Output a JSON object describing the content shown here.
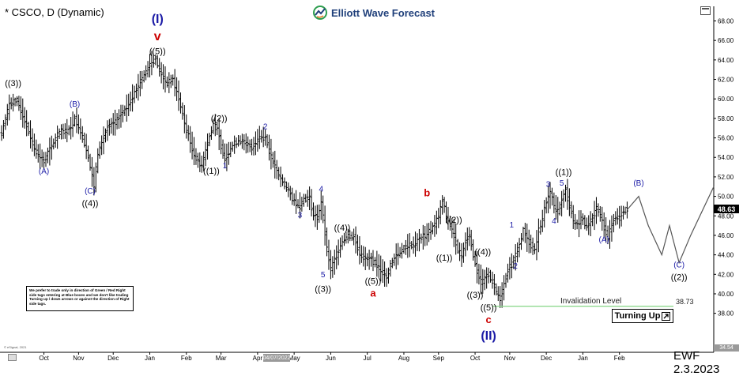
{
  "header": {
    "title": "* CSCO, D (Dynamic)",
    "logo_text": "Elliott Wave Forecast"
  },
  "footer": {
    "signature": "EWF 2.3.2023",
    "copyright": "© eSignal, 2021",
    "cursor_date": "04/07/2022"
  },
  "note_text": "We prefer to trade only in direction of Green / Red Right side tags entering at Blue boxes and we don't like trading Turning up / down arrows or against the direction of Right side tags.",
  "turning_button": {
    "label": "Turning Up",
    "icon": "arrow-up-right-icon"
  },
  "invalidation": {
    "label": "Invalidation Level",
    "value": "38.73",
    "price": 38.73,
    "color": "#8fd98f"
  },
  "last_price": {
    "label": "48.63",
    "value": 48.63
  },
  "bottom_price_tag": "34.54",
  "colors": {
    "bars": "#000000",
    "blue_label": "#1a1aa6",
    "red_label": "#cc0000",
    "projection": "#555555",
    "brand_green": "#2e9e4f",
    "brand_blue": "#1f3f7a"
  },
  "chart_data": {
    "type": "ohlc",
    "title": "* CSCO, D (Dynamic)",
    "ylim": [
      34,
      69.5
    ],
    "yticks": [
      38,
      40,
      42,
      44,
      46,
      48,
      50,
      52,
      54,
      56,
      58,
      60,
      62,
      64,
      66,
      68
    ],
    "ytick_labels": [
      "38.00",
      "40.00",
      "42.00",
      "44.00",
      "46.00",
      "48.00",
      "50.00",
      "52.00",
      "54.00",
      "56.00",
      "58.00",
      "60.00",
      "62.00",
      "64.00",
      "66.00",
      "68.00"
    ],
    "xticks": [
      "Oct",
      "Nov",
      "Dec",
      "Jan",
      "Feb",
      "Mar",
      "Apr",
      "May",
      "Jun",
      "Jul",
      "Aug",
      "Sep",
      "Oct",
      "Nov",
      "Dec",
      "Jan",
      "Feb"
    ],
    "xtick_pos": [
      22,
      40,
      58,
      77,
      96,
      114,
      133,
      152,
      171,
      190,
      209,
      227,
      246,
      264,
      283,
      302,
      321
    ],
    "x_range": [
      0,
      370
    ],
    "grid": false,
    "price_path": [
      [
        0,
        56.5
      ],
      [
        4,
        59.5
      ],
      [
        8,
        59.8
      ],
      [
        12,
        57.8
      ],
      [
        16,
        55.5
      ],
      [
        19,
        54.2
      ],
      [
        22,
        53.6
      ],
      [
        26,
        55.2
      ],
      [
        30,
        56.6
      ],
      [
        35,
        56.8
      ],
      [
        38,
        58.0
      ],
      [
        40,
        57.2
      ],
      [
        43,
        55.5
      ],
      [
        45,
        54.0
      ],
      [
        47,
        52.0
      ],
      [
        48,
        51.1
      ],
      [
        50,
        54.5
      ],
      [
        55,
        57.0
      ],
      [
        60,
        57.8
      ],
      [
        65,
        59.2
      ],
      [
        70,
        61.0
      ],
      [
        74,
        62.5
      ],
      [
        77,
        63.6
      ],
      [
        80,
        64.1
      ],
      [
        83,
        62.4
      ],
      [
        86,
        61.6
      ],
      [
        89,
        62.0
      ],
      [
        92,
        60.0
      ],
      [
        95,
        57.5
      ],
      [
        98,
        55.5
      ],
      [
        101,
        53.8
      ],
      [
        104,
        53.2
      ],
      [
        107,
        55.5
      ],
      [
        110,
        57.5
      ],
      [
        112,
        56.8
      ],
      [
        114,
        55.2
      ],
      [
        116,
        53.8
      ],
      [
        119,
        55.0
      ],
      [
        123,
        55.8
      ],
      [
        126,
        55.5
      ],
      [
        130,
        55.0
      ],
      [
        134,
        56.2
      ],
      [
        137,
        56.0
      ],
      [
        140,
        54.0
      ],
      [
        143,
        52.5
      ],
      [
        146,
        51.5
      ],
      [
        149,
        50.5
      ],
      [
        152,
        49.5
      ],
      [
        155,
        49.0
      ],
      [
        157,
        49.8
      ],
      [
        160,
        49.8
      ],
      [
        162,
        48.0
      ],
      [
        164,
        47.8
      ],
      [
        166,
        49.5
      ],
      [
        169,
        44.5
      ],
      [
        171,
        42.5
      ],
      [
        174,
        44.0
      ],
      [
        177,
        45.5
      ],
      [
        180,
        46.0
      ],
      [
        183,
        45.8
      ],
      [
        186,
        44.2
      ],
      [
        189,
        43.5
      ],
      [
        192,
        43.5
      ],
      [
        195,
        43.0
      ],
      [
        198,
        42.2
      ],
      [
        200,
        41.5
      ],
      [
        202,
        43.0
      ],
      [
        205,
        44.0
      ],
      [
        208,
        44.5
      ],
      [
        211,
        45.0
      ],
      [
        214,
        45.0
      ],
      [
        217,
        45.6
      ],
      [
        220,
        46.0
      ],
      [
        223,
        46.6
      ],
      [
        225,
        47.1
      ],
      [
        227,
        48.0
      ],
      [
        229,
        49.5
      ],
      [
        231,
        48.0
      ],
      [
        233,
        47.0
      ],
      [
        235,
        46.0
      ],
      [
        237,
        44.5
      ],
      [
        239,
        43.8
      ],
      [
        241,
        45.5
      ],
      [
        243,
        46.0
      ],
      [
        245,
        44.0
      ],
      [
        247,
        42.3
      ],
      [
        249,
        41.2
      ],
      [
        251,
        41.5
      ],
      [
        253,
        42.0
      ],
      [
        255,
        41.2
      ],
      [
        257,
        40.2
      ],
      [
        259,
        39.5
      ],
      [
        261,
        41.0
      ],
      [
        263,
        42.5
      ],
      [
        265,
        43.0
      ],
      [
        267,
        44.0
      ],
      [
        269,
        45.0
      ],
      [
        271,
        46.5
      ],
      [
        273,
        45.5
      ],
      [
        275,
        45.0
      ],
      [
        277,
        44.5
      ],
      [
        279,
        46.5
      ],
      [
        281,
        47.8
      ],
      [
        283,
        49.5
      ],
      [
        285,
        50.3
      ],
      [
        287,
        49.0
      ],
      [
        289,
        48.5
      ],
      [
        291,
        49.5
      ],
      [
        293,
        50.6
      ],
      [
        295,
        49.0
      ],
      [
        297,
        47.5
      ],
      [
        299,
        47.0
      ],
      [
        301,
        47.8
      ],
      [
        303,
        47.2
      ],
      [
        305,
        47.0
      ],
      [
        307,
        47.8
      ],
      [
        309,
        48.8
      ],
      [
        311,
        48.0
      ],
      [
        313,
        46.8
      ],
      [
        315,
        45.8
      ],
      [
        317,
        47.0
      ],
      [
        319,
        48.0
      ],
      [
        321,
        47.8
      ],
      [
        323,
        48.5
      ],
      [
        325,
        48.63
      ]
    ],
    "projection": [
      [
        325,
        48.63
      ],
      [
        331,
        50.0
      ],
      [
        336,
        47.0
      ],
      [
        343,
        44.0
      ],
      [
        347,
        47.0
      ],
      [
        352,
        43.2
      ],
      [
        358,
        46.0
      ],
      [
        370,
        51.0
      ]
    ],
    "wave_labels": [
      {
        "text": "((3))",
        "x": 6,
        "y": 61.3,
        "color": "black",
        "size": 11
      },
      {
        "text": "(A)",
        "x": 22,
        "y": 52.3,
        "color": "blue",
        "size": 10
      },
      {
        "text": "(B)",
        "x": 38,
        "y": 59.2,
        "color": "blue",
        "size": 10
      },
      {
        "text": "(C)",
        "x": 46,
        "y": 50.3,
        "color": "blue",
        "size": 10
      },
      {
        "text": "((4))",
        "x": 46,
        "y": 49.0,
        "color": "black",
        "size": 11
      },
      {
        "text": "(I)",
        "x": 81,
        "y": 67.8,
        "color": "blue",
        "size": 16
      },
      {
        "text": "v",
        "x": 81,
        "y": 66.0,
        "color": "red",
        "size": 16
      },
      {
        "text": "((5))",
        "x": 81,
        "y": 64.6,
        "color": "black",
        "size": 11
      },
      {
        "text": "((2))",
        "x": 113,
        "y": 57.7,
        "color": "black",
        "size": 11
      },
      {
        "text": "((1))",
        "x": 109,
        "y": 52.3,
        "color": "black",
        "size": 11
      },
      {
        "text": "1",
        "x": 116,
        "y": 52.9,
        "color": "blue",
        "size": 10
      },
      {
        "text": "2",
        "x": 137,
        "y": 56.9,
        "color": "blue",
        "size": 10
      },
      {
        "text": "3",
        "x": 155,
        "y": 47.8,
        "color": "blue",
        "size": 10
      },
      {
        "text": "4",
        "x": 166,
        "y": 50.5,
        "color": "blue",
        "size": 10
      },
      {
        "text": "((4))",
        "x": 177,
        "y": 46.5,
        "color": "black",
        "size": 11
      },
      {
        "text": "5",
        "x": 167,
        "y": 41.7,
        "color": "blue",
        "size": 10
      },
      {
        "text": "((3))",
        "x": 167,
        "y": 40.2,
        "color": "black",
        "size": 11
      },
      {
        "text": "((5))",
        "x": 193,
        "y": 41.0,
        "color": "black",
        "size": 11
      },
      {
        "text": "a",
        "x": 193,
        "y": 39.7,
        "color": "red",
        "size": 13
      },
      {
        "text": "b",
        "x": 221,
        "y": 50.0,
        "color": "red",
        "size": 13
      },
      {
        "text": "((2))",
        "x": 235,
        "y": 47.3,
        "color": "black",
        "size": 11
      },
      {
        "text": "((1))",
        "x": 230,
        "y": 43.4,
        "color": "black",
        "size": 11
      },
      {
        "text": "((4))",
        "x": 250,
        "y": 44.0,
        "color": "black",
        "size": 11
      },
      {
        "text": "((3))",
        "x": 246,
        "y": 39.6,
        "color": "black",
        "size": 11
      },
      {
        "text": "((5))",
        "x": 253,
        "y": 38.3,
        "color": "black",
        "size": 11
      },
      {
        "text": "c",
        "x": 253,
        "y": 37.0,
        "color": "red",
        "size": 13
      },
      {
        "text": "(II)",
        "x": 253,
        "y": 35.3,
        "color": "blue",
        "size": 16
      },
      {
        "text": "1",
        "x": 265,
        "y": 46.8,
        "color": "blue",
        "size": 10
      },
      {
        "text": "2",
        "x": 267,
        "y": 42.6,
        "color": "blue",
        "size": 10
      },
      {
        "text": "((1))",
        "x": 292,
        "y": 52.2,
        "color": "black",
        "size": 11
      },
      {
        "text": "3",
        "x": 284,
        "y": 51.0,
        "color": "blue",
        "size": 10
      },
      {
        "text": "5",
        "x": 291,
        "y": 51.1,
        "color": "blue",
        "size": 10
      },
      {
        "text": "4",
        "x": 287,
        "y": 47.2,
        "color": "blue",
        "size": 10
      },
      {
        "text": "(A)",
        "x": 313,
        "y": 45.3,
        "color": "blue",
        "size": 10
      },
      {
        "text": "(B)",
        "x": 331,
        "y": 51.1,
        "color": "blue",
        "size": 10
      },
      {
        "text": "(C)",
        "x": 352,
        "y": 42.7,
        "color": "blue",
        "size": 10
      },
      {
        "text": "((2))",
        "x": 352,
        "y": 41.4,
        "color": "black",
        "size": 11
      }
    ]
  }
}
